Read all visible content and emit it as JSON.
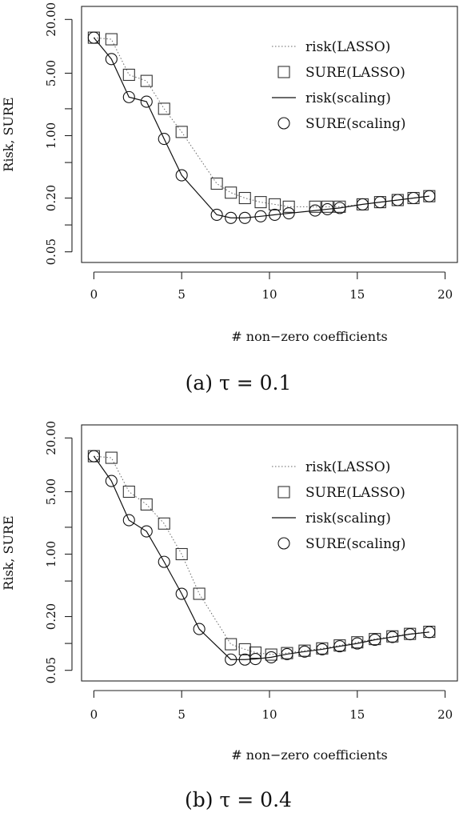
{
  "chart_data": [
    {
      "type": "line",
      "caption": "(a) τ = 0.1",
      "xlabel": "# non−zero coefficients",
      "ylabel": "Risk, SURE",
      "xlim": [
        -0.7,
        20.7
      ],
      "ylim": [
        0.038,
        28
      ],
      "log_y": true,
      "x_ticks": [
        0,
        5,
        10,
        15,
        20
      ],
      "x_tick_labels": [
        "0",
        "5",
        "10",
        "15",
        "20"
      ],
      "y_ticks": [
        0.05,
        0.1,
        0.2,
        0.5,
        1,
        2,
        5,
        20
      ],
      "y_tick_labels": [
        "0.05",
        "",
        "0.20",
        "",
        "1.00",
        "",
        "5.00",
        "20.00"
      ],
      "legend_position": "top-right",
      "legend": [
        "risk(LASSO)",
        "SURE(LASSO)",
        "risk(scaling)",
        "SURE(scaling)"
      ],
      "series": [
        {
          "name": "risk(LASSO)",
          "style": "dotted-line",
          "x": [
            0,
            1,
            2,
            3,
            4,
            5,
            7,
            7.8,
            8.6,
            9.5,
            10.3,
            11.1,
            12.6,
            13.3,
            14,
            15.3,
            16.3,
            17.3,
            18.2,
            19.1
          ],
          "y": [
            12.5,
            12.0,
            4.8,
            4.1,
            2.0,
            1.1,
            0.29,
            0.23,
            0.2,
            0.18,
            0.17,
            0.16,
            0.16,
            0.16,
            0.16,
            0.17,
            0.18,
            0.19,
            0.2,
            0.21
          ]
        },
        {
          "name": "SURE(LASSO)",
          "style": "square",
          "x": [
            0,
            1,
            2,
            3,
            4,
            5,
            7,
            7.8,
            8.6,
            9.5,
            10.3,
            11.1,
            12.6,
            13.3,
            14,
            15.3,
            16.3,
            17.3,
            18.2,
            19.1
          ],
          "y": [
            12.5,
            12.0,
            4.8,
            4.1,
            2.0,
            1.1,
            0.29,
            0.23,
            0.2,
            0.18,
            0.17,
            0.16,
            0.16,
            0.16,
            0.16,
            0.17,
            0.18,
            0.19,
            0.2,
            0.21
          ]
        },
        {
          "name": "risk(scaling)",
          "style": "solid-line",
          "x": [
            0,
            1,
            2,
            3,
            4,
            5,
            7,
            7.8,
            8.6,
            9.5,
            10.3,
            11.1,
            12.6,
            13.3,
            14,
            15.3,
            16.3,
            17.3,
            18.2,
            19.1
          ],
          "y": [
            12.5,
            7.2,
            2.7,
            2.4,
            0.92,
            0.36,
            0.13,
            0.12,
            0.12,
            0.125,
            0.13,
            0.135,
            0.145,
            0.15,
            0.155,
            0.17,
            0.18,
            0.19,
            0.2,
            0.21
          ]
        },
        {
          "name": "SURE(scaling)",
          "style": "circle",
          "x": [
            0,
            1,
            2,
            3,
            4,
            5,
            7,
            7.8,
            8.6,
            9.5,
            10.3,
            11.1,
            12.6,
            13.3,
            14,
            15.3,
            16.3,
            17.3,
            18.2,
            19.1
          ],
          "y": [
            12.5,
            7.2,
            2.7,
            2.4,
            0.92,
            0.36,
            0.13,
            0.12,
            0.12,
            0.125,
            0.13,
            0.135,
            0.145,
            0.15,
            0.155,
            0.17,
            0.18,
            0.19,
            0.2,
            0.21
          ]
        }
      ]
    },
    {
      "type": "line",
      "caption": "(b) τ = 0.4",
      "xlabel": "# non−zero coefficients",
      "ylabel": "Risk, SURE",
      "xlim": [
        -0.7,
        20.7
      ],
      "ylim": [
        0.038,
        28
      ],
      "log_y": true,
      "x_ticks": [
        0,
        5,
        10,
        15,
        20
      ],
      "x_tick_labels": [
        "0",
        "5",
        "10",
        "15",
        "20"
      ],
      "y_ticks": [
        0.05,
        0.1,
        0.2,
        0.5,
        1,
        2,
        5,
        20
      ],
      "y_tick_labels": [
        "0.05",
        "",
        "0.20",
        "",
        "1.00",
        "",
        "5.00",
        "20.00"
      ],
      "legend_position": "top-right",
      "legend": [
        "risk(LASSO)",
        "SURE(LASSO)",
        "risk(scaling)",
        "SURE(scaling)"
      ],
      "series": [
        {
          "name": "risk(LASSO)",
          "style": "dotted-line",
          "x": [
            0,
            1,
            2,
            3,
            4,
            5,
            6,
            7.8,
            8.6,
            9.2,
            10.1,
            11,
            12,
            13,
            14,
            15,
            16,
            17,
            18,
            19.1
          ],
          "y": [
            12.5,
            12.0,
            5.0,
            3.6,
            2.2,
            1.0,
            0.36,
            0.098,
            0.086,
            0.079,
            0.075,
            0.078,
            0.083,
            0.088,
            0.095,
            0.103,
            0.112,
            0.12,
            0.128,
            0.135
          ]
        },
        {
          "name": "SURE(LASSO)",
          "style": "square",
          "x": [
            0,
            1,
            2,
            3,
            4,
            5,
            6,
            7.8,
            8.6,
            9.2,
            10.1,
            11,
            12,
            13,
            14,
            15,
            16,
            17,
            18,
            19.1
          ],
          "y": [
            12.5,
            12.0,
            5.0,
            3.6,
            2.2,
            1.0,
            0.36,
            0.098,
            0.086,
            0.079,
            0.075,
            0.078,
            0.083,
            0.088,
            0.095,
            0.103,
            0.112,
            0.12,
            0.128,
            0.135
          ]
        },
        {
          "name": "risk(scaling)",
          "style": "solid-line",
          "x": [
            0,
            1,
            2,
            3,
            4,
            5,
            6,
            7.8,
            8.6,
            9.2,
            10.1,
            11,
            12,
            13,
            14,
            15,
            16,
            17,
            18,
            19.1
          ],
          "y": [
            12.5,
            6.6,
            2.4,
            1.8,
            0.82,
            0.36,
            0.145,
            0.066,
            0.066,
            0.067,
            0.07,
            0.076,
            0.081,
            0.086,
            0.093,
            0.1,
            0.11,
            0.118,
            0.127,
            0.134
          ]
        },
        {
          "name": "SURE(scaling)",
          "style": "circle",
          "x": [
            0,
            1,
            2,
            3,
            4,
            5,
            6,
            7.8,
            8.6,
            9.2,
            10.1,
            11,
            12,
            13,
            14,
            15,
            16,
            17,
            18,
            19.1
          ],
          "y": [
            12.5,
            6.6,
            2.4,
            1.8,
            0.82,
            0.36,
            0.145,
            0.066,
            0.066,
            0.067,
            0.07,
            0.076,
            0.081,
            0.086,
            0.093,
            0.1,
            0.11,
            0.118,
            0.127,
            0.134
          ]
        }
      ]
    }
  ]
}
